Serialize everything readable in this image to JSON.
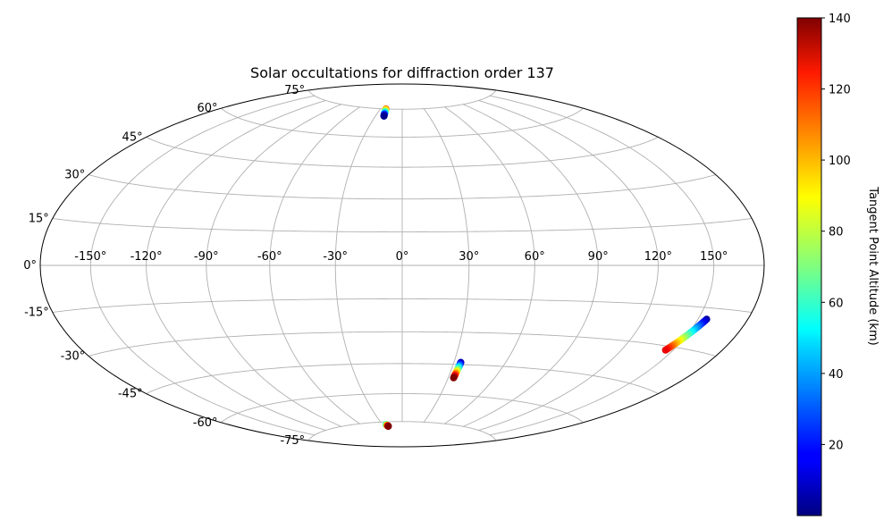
{
  "chart_data": {
    "type": "scatter",
    "projection": "hammer",
    "title": "Solar occultations for diffraction order 137",
    "grid": true,
    "longitude_ticks": [
      "-150°",
      "-120°",
      "-90°",
      "-60°",
      "-30°",
      "0°",
      "30°",
      "60°",
      "90°",
      "120°",
      "150°"
    ],
    "latitude_ticks": [
      "75°",
      "60°",
      "45°",
      "30°",
      "15°",
      "0°",
      "-15°",
      "-30°",
      "-45°",
      "-60°",
      "-75°"
    ],
    "colorbar": {
      "label": "Tangent Point Altitude (km)",
      "colormap": "jet",
      "range": [
        0,
        140
      ],
      "ticks": [
        "20",
        "40",
        "60",
        "80",
        "100",
        "120",
        "140"
      ]
    },
    "series": [
      {
        "lon_range": [
          -22.5,
          -20.5
        ],
        "lat_range": [
          75.0,
          71.0
        ],
        "alt_range": [
          110,
          2
        ]
      },
      {
        "lon_range": [
          -24.5,
          -22.5
        ],
        "lat_range": [
          -76.5,
          -77.5
        ],
        "alt_range": [
          50,
          140
        ]
      },
      {
        "lon_range": [
          34.0,
          33.5
        ],
        "lat_range": [
          -44.0,
          -51.5
        ],
        "alt_range": [
          5,
          140
        ]
      },
      {
        "lon_range": [
          155.0,
          145.5
        ],
        "lat_range": [
          -19.0,
          -31.5
        ],
        "alt_range": [
          5,
          125
        ]
      }
    ]
  }
}
